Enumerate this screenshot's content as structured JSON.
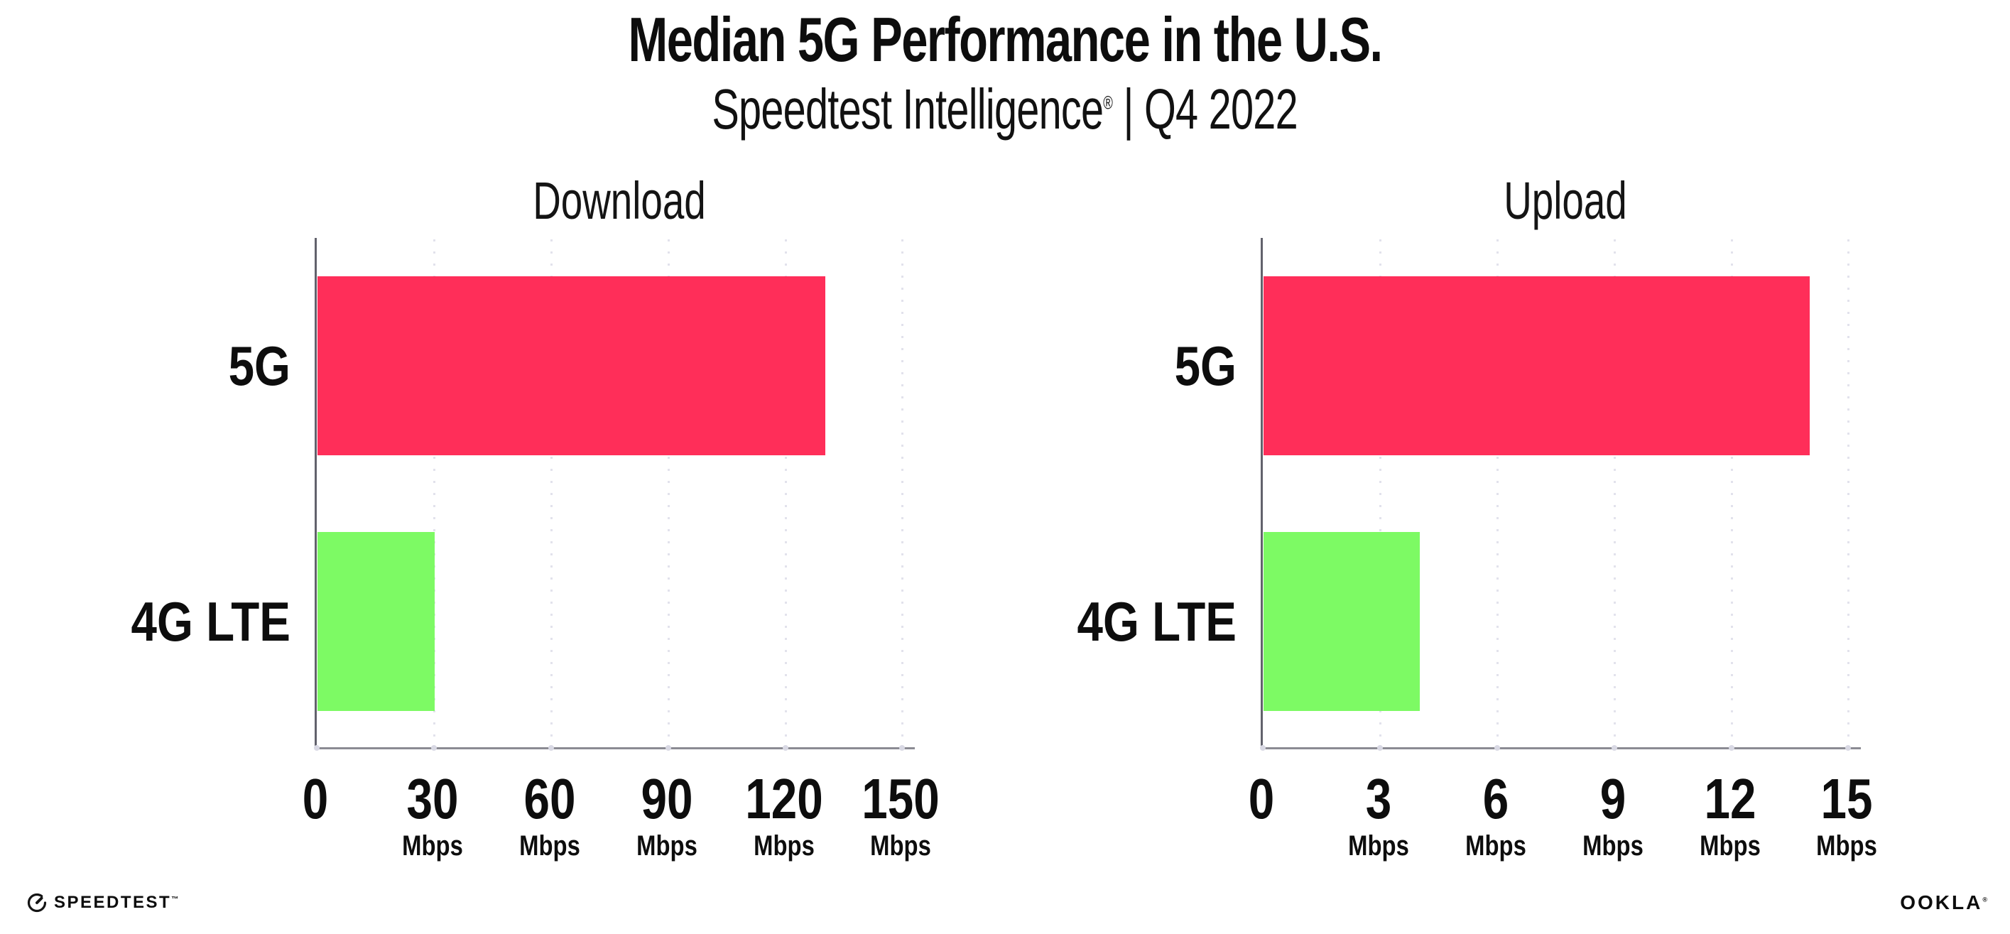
{
  "header": {
    "title": "Median 5G Performance in the U.S.",
    "subtitle_product": "Speedtest Intelligence",
    "subtitle_reg": "®",
    "subtitle_rest": " | Q4 2022"
  },
  "footer": {
    "speedtest_logo_text": "SPEEDTEST",
    "speedtest_tm": "™",
    "ookla_logo_text": "OOKLA",
    "ookla_reg": "®"
  },
  "colors": {
    "bar_5g": "#FF2E59",
    "bar_4g_lte": "#7DFA64",
    "x_axis_line": "#8B8B93",
    "y_axis_line": "#62626C",
    "gridline_dot": "#E2E2EC",
    "tick_dot": "#D9D9E4",
    "text": "#0D0D0D"
  },
  "chart_data": [
    {
      "type": "bar",
      "orientation": "horizontal",
      "title": "Download",
      "categories": [
        "5G",
        "4G LTE"
      ],
      "values": [
        130,
        30
      ],
      "unit": "Mbps",
      "xlim": [
        0,
        150
      ],
      "ticks": [
        0,
        30,
        60,
        90,
        120,
        150
      ],
      "grid": "dotted-vertical-at-ticks",
      "legend": "none",
      "bar_colors": [
        "#FF2E59",
        "#7DFA64"
      ]
    },
    {
      "type": "bar",
      "orientation": "horizontal",
      "title": "Upload",
      "categories": [
        "5G",
        "4G LTE"
      ],
      "values": [
        14,
        4
      ],
      "unit": "Mbps",
      "xlim": [
        0,
        15
      ],
      "ticks": [
        0,
        3,
        6,
        9,
        12,
        15
      ],
      "grid": "dotted-vertical-at-ticks",
      "legend": "none",
      "bar_colors": [
        "#FF2E59",
        "#7DFA64"
      ]
    }
  ]
}
